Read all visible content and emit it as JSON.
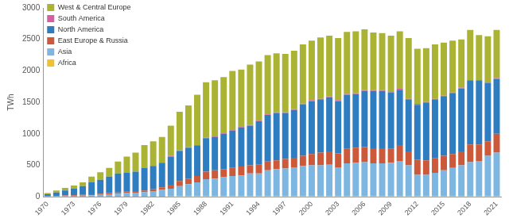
{
  "chart_data": {
    "type": "bar",
    "stacked": true,
    "grid": false,
    "legend": "upper left",
    "y_label": "TWh",
    "categories": [
      "1970",
      null,
      null,
      "1973",
      null,
      null,
      "1976",
      null,
      null,
      "1979",
      null,
      null,
      "1982",
      null,
      null,
      "1985",
      null,
      null,
      "1988",
      null,
      null,
      "1991",
      null,
      null,
      "1994",
      null,
      null,
      "1997",
      null,
      null,
      "2000",
      null,
      null,
      "2003",
      null,
      null,
      "2006",
      null,
      null,
      "2009",
      null,
      null,
      "2012",
      null,
      null,
      "2015",
      null,
      null,
      "2018",
      null,
      null,
      "2021"
    ],
    "ylim": [
      0,
      3000
    ],
    "yticks": [
      0,
      500,
      1000,
      1500,
      2000,
      2500,
      3000
    ],
    "series": [
      {
        "name": "Africa",
        "color": "#f2c12e",
        "values": [
          0,
          0,
          0,
          0,
          0,
          0,
          0,
          0,
          0,
          0,
          0,
          0,
          0,
          0,
          5,
          12,
          12,
          12,
          12,
          12,
          12,
          12,
          12,
          12,
          12,
          12,
          12,
          12,
          12,
          12,
          12,
          12,
          12,
          12,
          12,
          12,
          12,
          12,
          12,
          12,
          12,
          12,
          12,
          12,
          12,
          12,
          12,
          12,
          12,
          12,
          12,
          12
        ]
      },
      {
        "name": "Asia",
        "color": "#7db6e0",
        "values": [
          5,
          10,
          12,
          15,
          18,
          25,
          30,
          40,
          50,
          60,
          65,
          75,
          90,
          110,
          125,
          158,
          188,
          218,
          268,
          278,
          298,
          318,
          328,
          358,
          358,
          408,
          428,
          438,
          458,
          478,
          488,
          488,
          498,
          458,
          518,
          528,
          538,
          518,
          518,
          528,
          558,
          488,
          338,
          338,
          368,
          408,
          448,
          488,
          538,
          558,
          638,
          688
        ]
      },
      {
        "name": "East Europe & Russia",
        "color": "#cc5a3a",
        "values": [
          5,
          5,
          8,
          10,
          12,
          15,
          20,
          20,
          20,
          20,
          25,
          25,
          30,
          40,
          60,
          80,
          90,
          100,
          120,
          130,
          130,
          130,
          140,
          130,
          140,
          140,
          140,
          150,
          150,
          160,
          180,
          200,
          210,
          220,
          230,
          240,
          240,
          240,
          240,
          220,
          250,
          220,
          240,
          230,
          230,
          230,
          220,
          220,
          280,
          260,
          230,
          300
        ]
      },
      {
        "name": "North America",
        "color": "#2e7dc0",
        "values": [
          30,
          55,
          80,
          105,
          140,
          190,
          220,
          260,
          300,
          300,
          310,
          360,
          370,
          390,
          450,
          480,
          490,
          480,
          530,
          530,
          560,
          590,
          620,
          630,
          690,
          740,
          750,
          730,
          760,
          820,
          840,
          840,
          860,
          830,
          860,
          850,
          890,
          910,
          910,
          900,
          880,
          820,
          870,
          910,
          930,
          940,
          960,
          1000,
          1010,
          1010,
          930,
          870
        ]
      },
      {
        "name": "South America",
        "color": "#d6609f",
        "values": [
          0,
          0,
          0,
          0,
          0,
          0,
          0,
          0,
          0,
          0,
          0,
          5,
          5,
          5,
          10,
          10,
          10,
          10,
          10,
          10,
          10,
          10,
          10,
          10,
          10,
          10,
          10,
          10,
          10,
          10,
          15,
          15,
          15,
          15,
          15,
          15,
          15,
          15,
          15,
          15,
          15,
          15,
          15,
          15,
          15,
          15,
          15,
          15,
          15,
          15,
          15,
          15
        ]
      },
      {
        "name": "West & Central Europe",
        "color": "#aab334",
        "values": [
          20,
          30,
          40,
          50,
          60,
          90,
          120,
          140,
          190,
          260,
          300,
          355,
          385,
          405,
          480,
          610,
          660,
          800,
          880,
          890,
          890,
          940,
          910,
          960,
          940,
          940,
          940,
          930,
          930,
          940,
          945,
          975,
          965,
          985,
          985,
          985,
          965,
          915,
          905,
          885,
          915,
          965,
          875,
          855,
          865,
          845,
          825,
          765,
          795,
          715,
          725,
          765
        ]
      }
    ]
  }
}
